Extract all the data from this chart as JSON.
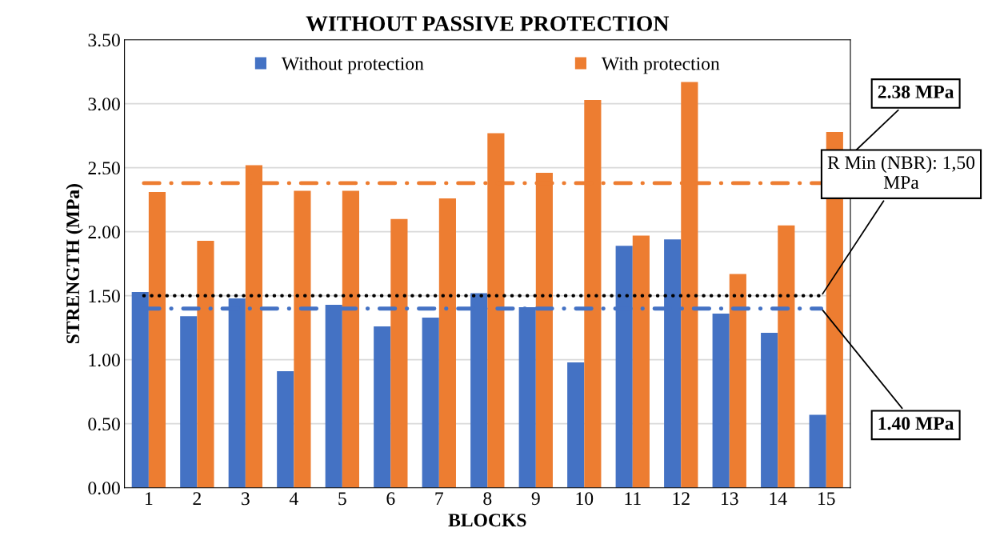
{
  "chart_data": {
    "type": "bar",
    "title": "WITHOUT PASSIVE PROTECTION",
    "xlabel": "BLOCKS",
    "ylabel": "STRENGTH (MPa)",
    "categories": [
      "1",
      "2",
      "3",
      "4",
      "5",
      "6",
      "7",
      "8",
      "9",
      "10",
      "11",
      "12",
      "13",
      "14",
      "15"
    ],
    "series": [
      {
        "name": "Without protection",
        "color": "#4472c4",
        "values": [
          1.53,
          1.34,
          1.48,
          0.91,
          1.43,
          1.26,
          1.33,
          1.52,
          1.41,
          0.98,
          1.89,
          1.94,
          1.36,
          1.21,
          0.57
        ]
      },
      {
        "name": "With protection",
        "color": "#ed7d31",
        "values": [
          2.31,
          1.93,
          2.52,
          2.32,
          2.32,
          2.1,
          2.26,
          2.77,
          2.46,
          3.03,
          1.97,
          3.17,
          1.67,
          2.05,
          2.78
        ]
      }
    ],
    "ylim": [
      0,
      3.5
    ],
    "yticks": [
      {
        "value": 0,
        "label": "0.00"
      },
      {
        "value": 0.5,
        "label": "0.50"
      },
      {
        "value": 1,
        "label": "1.00"
      },
      {
        "value": 1.5,
        "label": "1.50"
      },
      {
        "value": 2,
        "label": "2.00"
      },
      {
        "value": 2.5,
        "label": "2.50"
      },
      {
        "value": 3,
        "label": "3.00"
      },
      {
        "value": 3.5,
        "label": "3.50"
      }
    ],
    "ref_lines": [
      {
        "axis": "y",
        "value": 2.38,
        "label": "2.38 MPa",
        "color": "#ed7d31",
        "line_style": "dashdot"
      },
      {
        "axis": "y",
        "value": 1.5,
        "label": "R Min (NBR): 1,50\nMPa",
        "color": "#000000",
        "line_style": "dotted"
      },
      {
        "axis": "y",
        "value": 1.4,
        "label": "1.40 MPa",
        "color": "#4472c4",
        "line_style": "dashdot"
      }
    ],
    "grid": "y",
    "legend": "top"
  }
}
